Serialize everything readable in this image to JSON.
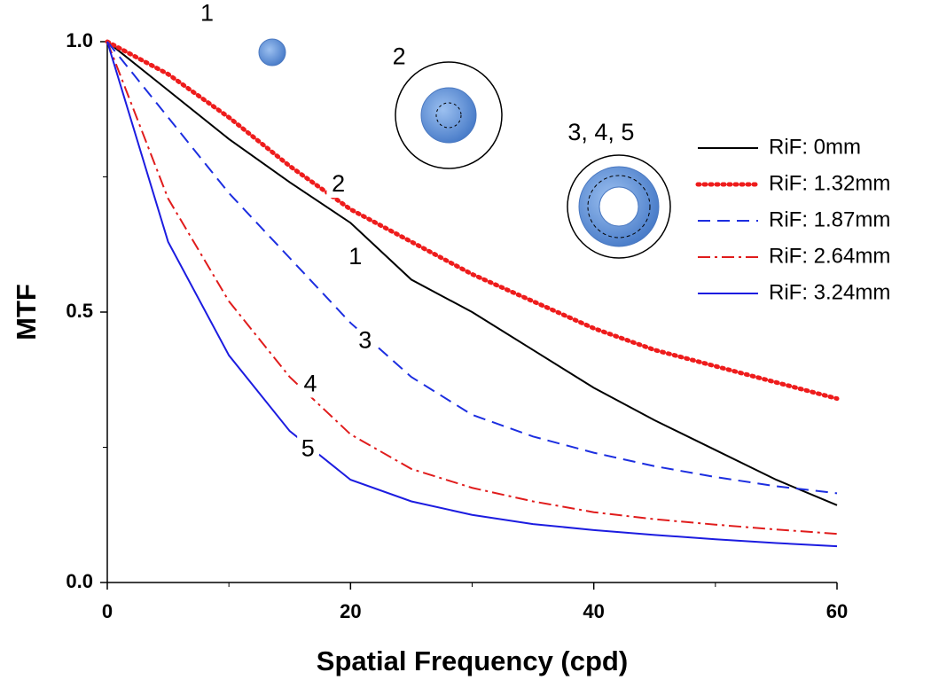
{
  "chart_data": {
    "type": "line",
    "x_label": "Spatial Frequency (cpd)",
    "y_label": "MTF",
    "x": [
      0,
      5,
      10,
      15,
      20,
      25,
      30,
      35,
      40,
      45,
      50,
      55,
      60
    ],
    "series": [
      {
        "name": "RiF: 0mm",
        "color": "#000000",
        "dash": "solid",
        "values": [
          1.0,
          0.91,
          0.82,
          0.74,
          0.665,
          0.56,
          0.5,
          0.43,
          0.36,
          0.3,
          0.245,
          0.19,
          0.143
        ]
      },
      {
        "name": "RiF: 1.32mm",
        "color": "#ee1c1c",
        "dash": "dot",
        "values": [
          1.0,
          0.94,
          0.86,
          0.77,
          0.69,
          0.63,
          0.57,
          0.52,
          0.47,
          0.43,
          0.4,
          0.37,
          0.34
        ]
      },
      {
        "name": "RiF: 1.87mm",
        "color": "#1c2ee0",
        "dash": "dash",
        "values": [
          1.0,
          0.86,
          0.72,
          0.6,
          0.48,
          0.38,
          0.31,
          0.27,
          0.24,
          0.215,
          0.195,
          0.178,
          0.165
        ]
      },
      {
        "name": "RiF: 2.64mm",
        "color": "#e01c1c",
        "dash": "dashdot",
        "values": [
          1.0,
          0.71,
          0.52,
          0.38,
          0.274,
          0.21,
          0.175,
          0.15,
          0.13,
          0.117,
          0.107,
          0.098,
          0.09
        ]
      },
      {
        "name": "RiF: 3.24mm",
        "color": "#1c1ce0",
        "dash": "solid",
        "values": [
          1.0,
          0.63,
          0.42,
          0.28,
          0.19,
          0.15,
          0.125,
          0.108,
          0.097,
          0.088,
          0.08,
          0.073,
          0.067
        ]
      }
    ],
    "annotations": [
      {
        "text": "1",
        "x": 8.2,
        "y": 1.05
      },
      {
        "text": "2",
        "x": 24,
        "y": 0.97
      },
      {
        "text": "3, 4, 5",
        "x": 40.6,
        "y": 0.83
      },
      {
        "text": "2",
        "x": 19,
        "y": 0.735
      },
      {
        "text": "1",
        "x": 20.4,
        "y": 0.6
      },
      {
        "text": "3",
        "x": 21.2,
        "y": 0.445
      },
      {
        "text": "4",
        "x": 16.7,
        "y": 0.365
      },
      {
        "text": "5",
        "x": 16.5,
        "y": 0.245
      }
    ],
    "xlim": [
      0,
      60
    ],
    "xticks": [
      0,
      20,
      40,
      60
    ],
    "xminorticks": [
      10,
      30,
      50
    ],
    "ylim": [
      0,
      1
    ],
    "yticks": [
      {
        "value": 0,
        "label": "0.0"
      },
      0.5,
      {
        "value": 1,
        "label": "1.0"
      }
    ],
    "yminorticks": [
      0.25,
      0.75
    ],
    "legend": "right"
  }
}
